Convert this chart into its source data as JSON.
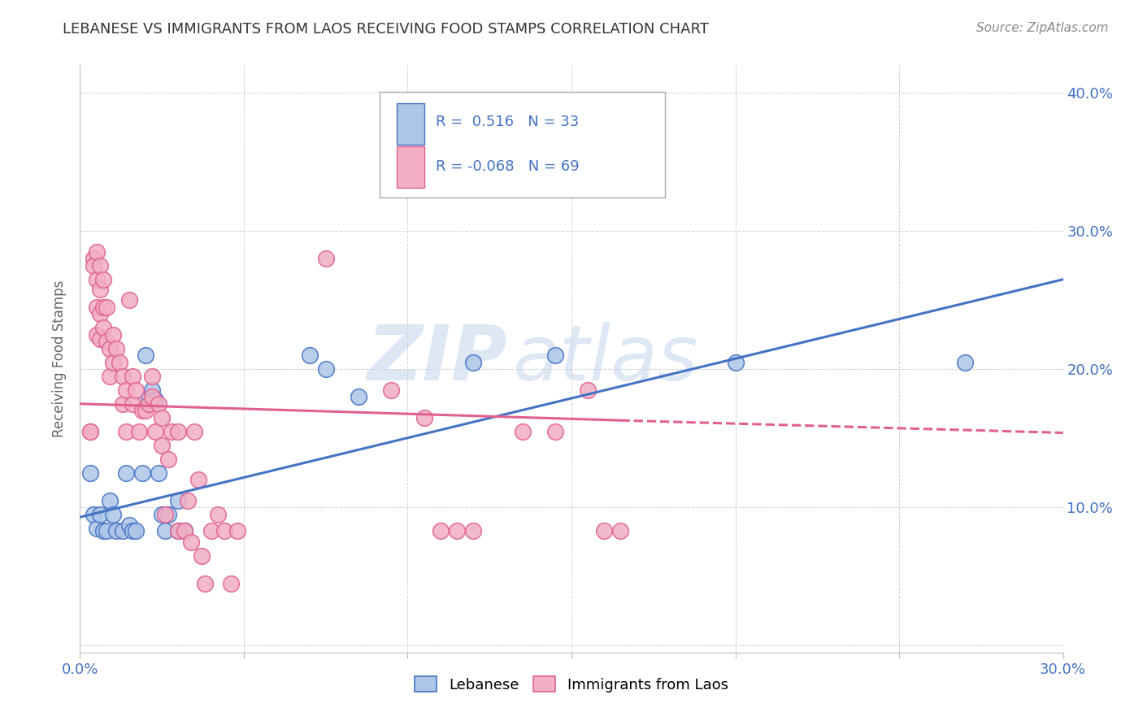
{
  "title": "LEBANESE VS IMMIGRANTS FROM LAOS RECEIVING FOOD STAMPS CORRELATION CHART",
  "source_text": "Source: ZipAtlas.com",
  "ylabel": "Receiving Food Stamps",
  "xlim": [
    0.0,
    0.3
  ],
  "ylim": [
    -0.005,
    0.42
  ],
  "xticks": [
    0.0,
    0.05,
    0.1,
    0.15,
    0.2,
    0.25,
    0.3
  ],
  "yticks": [
    0.0,
    0.1,
    0.2,
    0.3,
    0.4
  ],
  "xtick_labels": [
    "0.0%",
    "",
    "",
    "",
    "",
    "",
    "30.0%"
  ],
  "ytick_labels_right": [
    "",
    "10.0%",
    "20.0%",
    "30.0%",
    "40.0%"
  ],
  "blue_dots": [
    [
      0.003,
      0.125
    ],
    [
      0.004,
      0.095
    ],
    [
      0.005,
      0.085
    ],
    [
      0.006,
      0.095
    ],
    [
      0.007,
      0.083
    ],
    [
      0.008,
      0.083
    ],
    [
      0.009,
      0.105
    ],
    [
      0.01,
      0.095
    ],
    [
      0.011,
      0.083
    ],
    [
      0.013,
      0.083
    ],
    [
      0.014,
      0.125
    ],
    [
      0.015,
      0.087
    ],
    [
      0.016,
      0.083
    ],
    [
      0.017,
      0.083
    ],
    [
      0.019,
      0.125
    ],
    [
      0.02,
      0.21
    ],
    [
      0.021,
      0.18
    ],
    [
      0.022,
      0.185
    ],
    [
      0.023,
      0.178
    ],
    [
      0.024,
      0.125
    ],
    [
      0.025,
      0.095
    ],
    [
      0.026,
      0.083
    ],
    [
      0.027,
      0.095
    ],
    [
      0.03,
      0.083
    ],
    [
      0.03,
      0.105
    ],
    [
      0.032,
      0.083
    ],
    [
      0.07,
      0.21
    ],
    [
      0.075,
      0.2
    ],
    [
      0.085,
      0.18
    ],
    [
      0.12,
      0.205
    ],
    [
      0.145,
      0.21
    ],
    [
      0.2,
      0.205
    ],
    [
      0.27,
      0.205
    ]
  ],
  "pink_dots": [
    [
      0.003,
      0.155
    ],
    [
      0.003,
      0.155
    ],
    [
      0.004,
      0.28
    ],
    [
      0.004,
      0.275
    ],
    [
      0.005,
      0.285
    ],
    [
      0.005,
      0.265
    ],
    [
      0.005,
      0.245
    ],
    [
      0.005,
      0.225
    ],
    [
      0.006,
      0.275
    ],
    [
      0.006,
      0.258
    ],
    [
      0.006,
      0.24
    ],
    [
      0.006,
      0.222
    ],
    [
      0.007,
      0.265
    ],
    [
      0.007,
      0.245
    ],
    [
      0.007,
      0.23
    ],
    [
      0.008,
      0.245
    ],
    [
      0.008,
      0.22
    ],
    [
      0.009,
      0.215
    ],
    [
      0.009,
      0.195
    ],
    [
      0.01,
      0.225
    ],
    [
      0.01,
      0.205
    ],
    [
      0.011,
      0.215
    ],
    [
      0.012,
      0.205
    ],
    [
      0.013,
      0.195
    ],
    [
      0.013,
      0.175
    ],
    [
      0.014,
      0.185
    ],
    [
      0.014,
      0.155
    ],
    [
      0.015,
      0.25
    ],
    [
      0.016,
      0.195
    ],
    [
      0.016,
      0.175
    ],
    [
      0.017,
      0.185
    ],
    [
      0.018,
      0.155
    ],
    [
      0.019,
      0.17
    ],
    [
      0.02,
      0.17
    ],
    [
      0.021,
      0.175
    ],
    [
      0.022,
      0.195
    ],
    [
      0.022,
      0.18
    ],
    [
      0.023,
      0.155
    ],
    [
      0.024,
      0.175
    ],
    [
      0.025,
      0.165
    ],
    [
      0.025,
      0.145
    ],
    [
      0.026,
      0.095
    ],
    [
      0.027,
      0.135
    ],
    [
      0.028,
      0.155
    ],
    [
      0.03,
      0.155
    ],
    [
      0.03,
      0.083
    ],
    [
      0.032,
      0.083
    ],
    [
      0.033,
      0.105
    ],
    [
      0.034,
      0.075
    ],
    [
      0.035,
      0.155
    ],
    [
      0.036,
      0.12
    ],
    [
      0.037,
      0.065
    ],
    [
      0.038,
      0.045
    ],
    [
      0.04,
      0.083
    ],
    [
      0.042,
      0.095
    ],
    [
      0.044,
      0.083
    ],
    [
      0.046,
      0.045
    ],
    [
      0.048,
      0.083
    ],
    [
      0.075,
      0.28
    ],
    [
      0.095,
      0.185
    ],
    [
      0.105,
      0.165
    ],
    [
      0.11,
      0.083
    ],
    [
      0.115,
      0.083
    ],
    [
      0.12,
      0.083
    ],
    [
      0.135,
      0.155
    ],
    [
      0.145,
      0.155
    ],
    [
      0.155,
      0.185
    ],
    [
      0.16,
      0.083
    ],
    [
      0.165,
      0.083
    ]
  ],
  "blue_line": {
    "x0": 0.0,
    "y0": 0.093,
    "x1": 0.3,
    "y1": 0.265
  },
  "pink_line_solid": {
    "x0": 0.0,
    "y0": 0.175,
    "x1": 0.165,
    "y1": 0.163
  },
  "pink_line_dash": {
    "x0": 0.165,
    "y0": 0.163,
    "x1": 0.3,
    "y1": 0.154
  },
  "blue_color": "#4472c4",
  "pink_color": "#e06090",
  "blue_dot_fill": "#adc6e8",
  "pink_dot_fill": "#f2aec4",
  "watermark": "ZIPatlas",
  "bg_color": "#ffffff",
  "grid_color": "#d0d0d0",
  "tick_color": "#4472c4",
  "title_color": "#333333",
  "source_color": "#888888"
}
